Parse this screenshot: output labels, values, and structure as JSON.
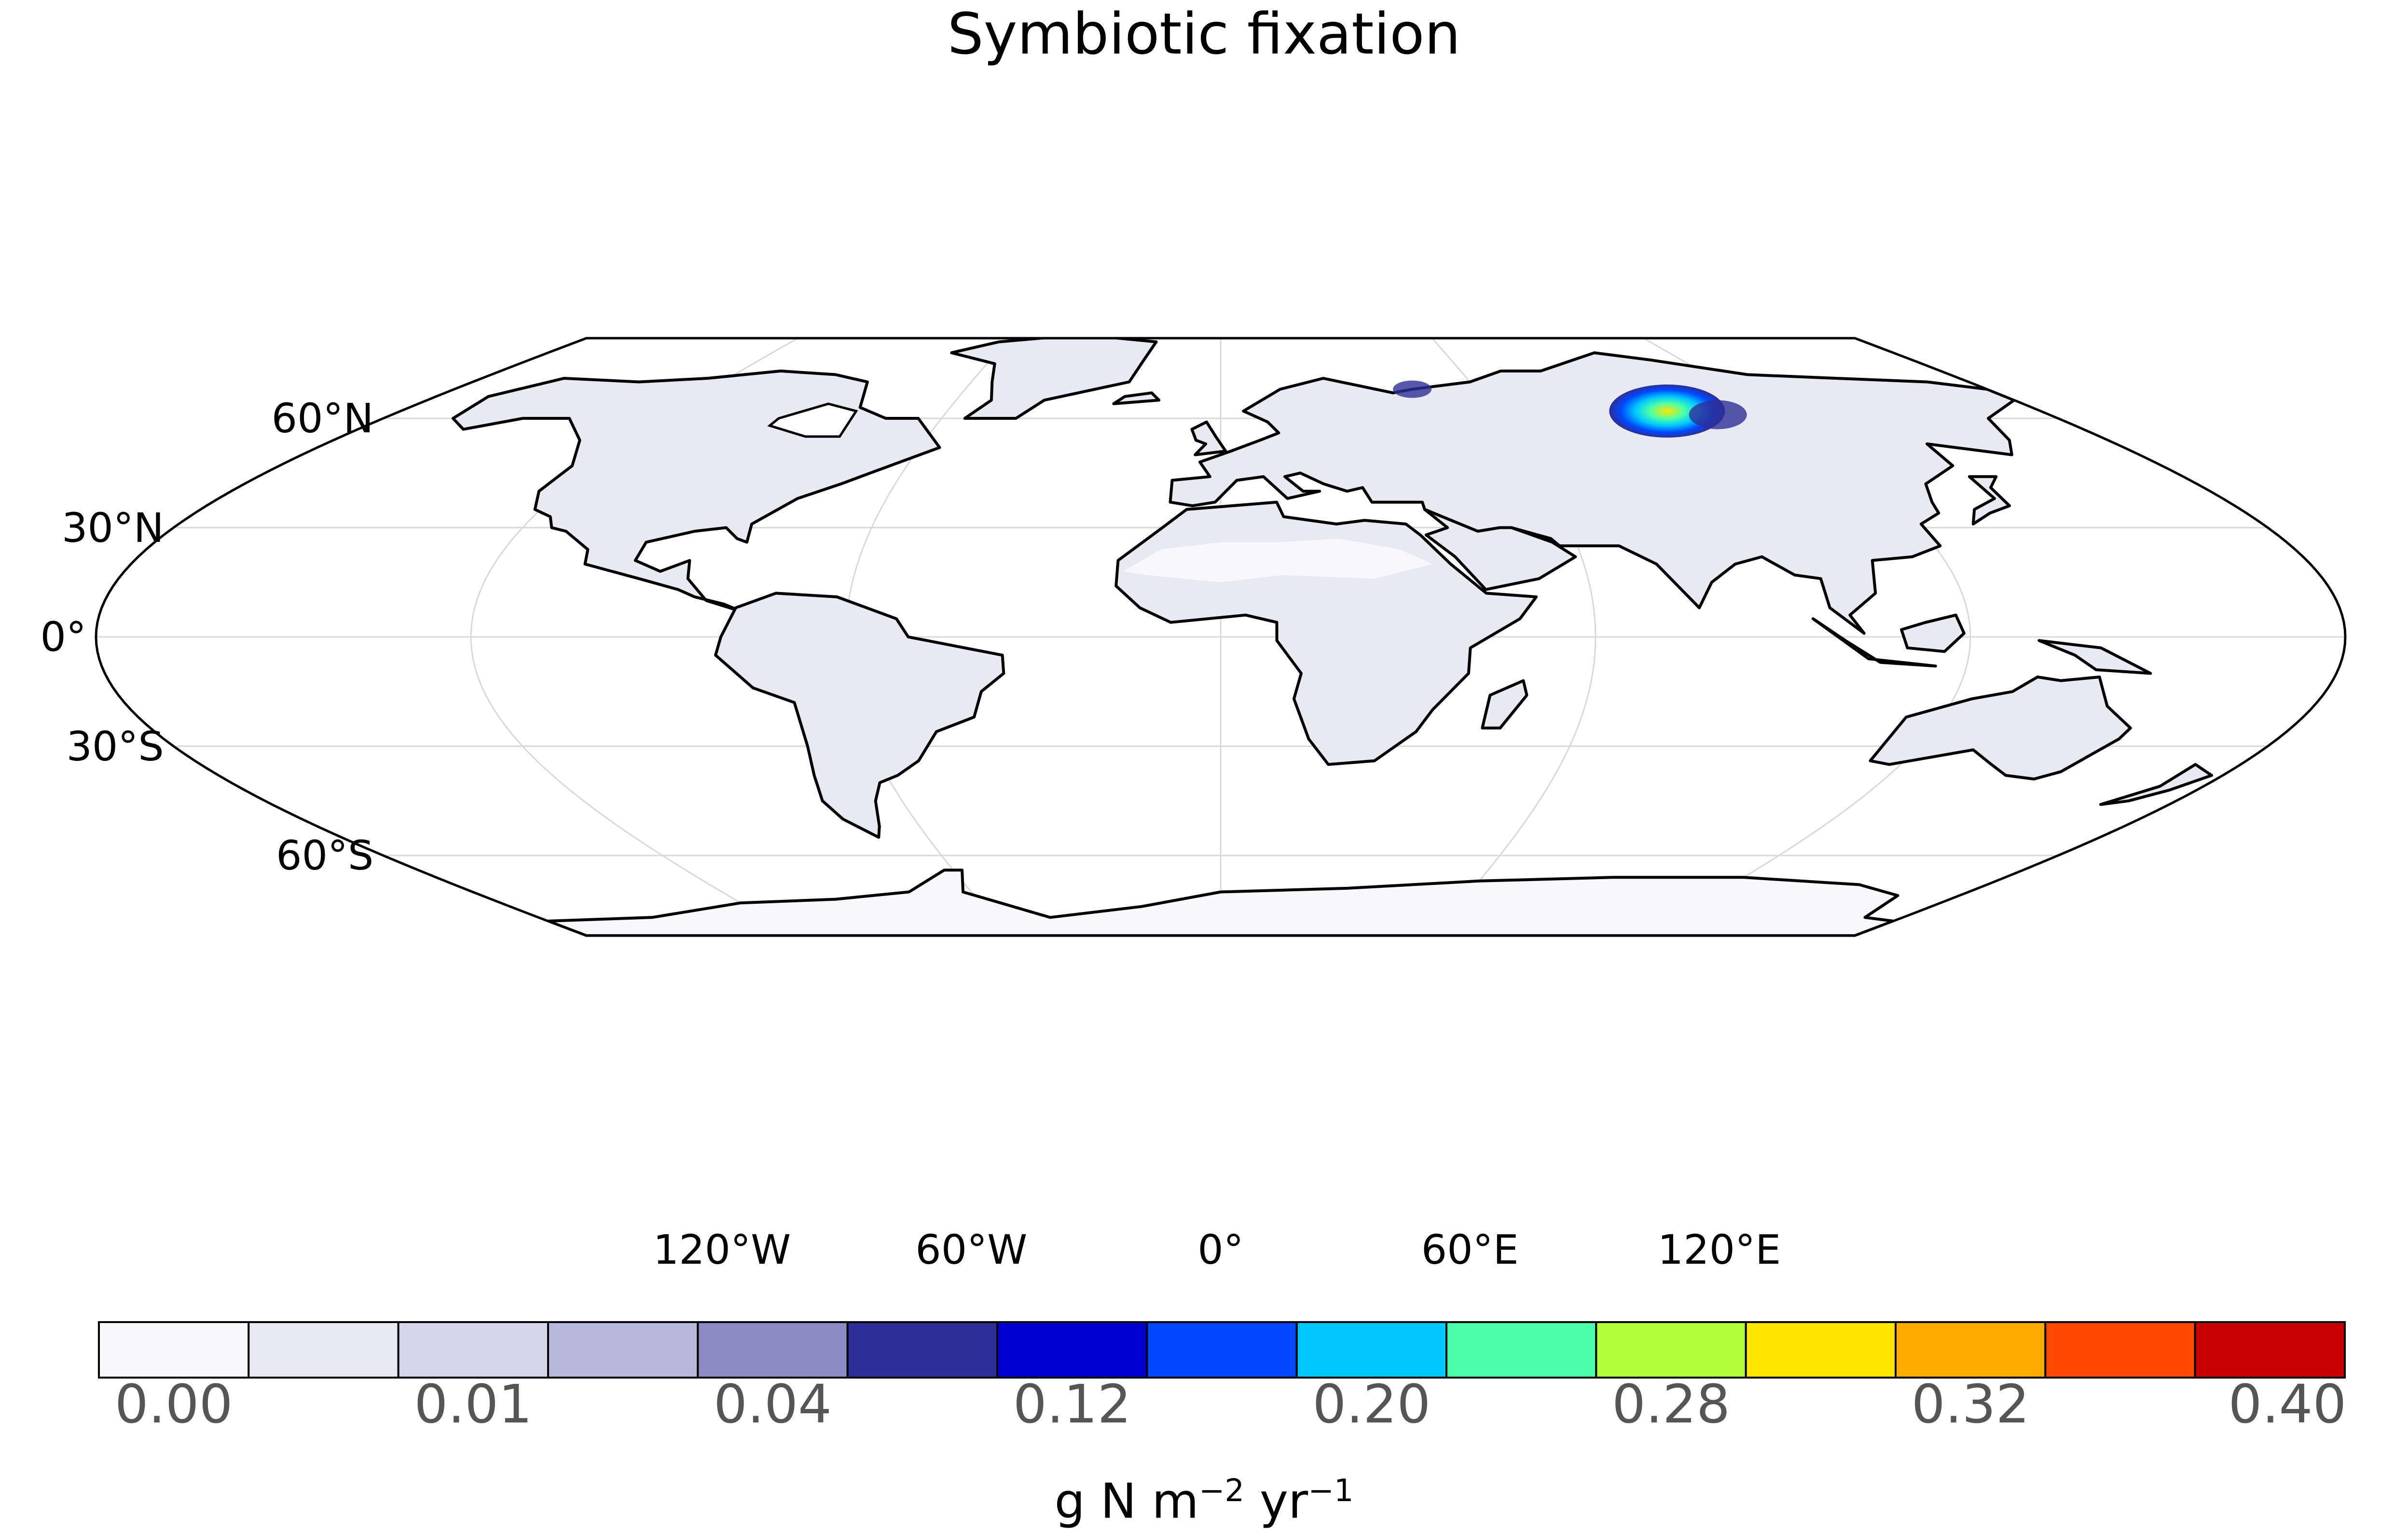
{
  "title": "Symbiotic fixation",
  "lat_labels": [
    {
      "text": "60°N",
      "lat": 60
    },
    {
      "text": "30°N",
      "lat": 30
    },
    {
      "text": "0°",
      "lat": 0
    },
    {
      "text": "30°S",
      "lat": -30
    },
    {
      "text": "60°S",
      "lat": -60
    }
  ],
  "lon_labels": [
    {
      "text": "120°W",
      "lon": -120
    },
    {
      "text": "60°W",
      "lon": -60
    },
    {
      "text": "0°",
      "lon": 0
    },
    {
      "text": "60°E",
      "lon": 60
    },
    {
      "text": "120°E",
      "lon": 120
    }
  ],
  "colorbar": {
    "colors": [
      "#f8f8fc",
      "#e8e8f4",
      "#d6d6eb",
      "#b8b8dc",
      "#8c8cc4",
      "#2e2e96",
      "#0000d0",
      "#0048ff",
      "#00c8ff",
      "#4cffaa",
      "#b4ff3c",
      "#ffe600",
      "#ffaa00",
      "#ff4a00",
      "#c80000"
    ],
    "tick_labels": [
      "0.00",
      "0.01",
      "0.04",
      "0.12",
      "0.20",
      "0.28",
      "0.32",
      "0.40"
    ],
    "unit": {
      "base1": "g N m",
      "exp1": "−2",
      "base2": " yr",
      "exp2": "−1"
    }
  },
  "colors": {
    "land": "#e9e9f4",
    "desert": "#f8f8fc",
    "antarctica": "#f8f8fc",
    "grid": "#d9d9d9",
    "coast": "#000000"
  },
  "hotspot": {
    "lon": 98,
    "lat": 62,
    "peak_value": 0.28
  }
}
